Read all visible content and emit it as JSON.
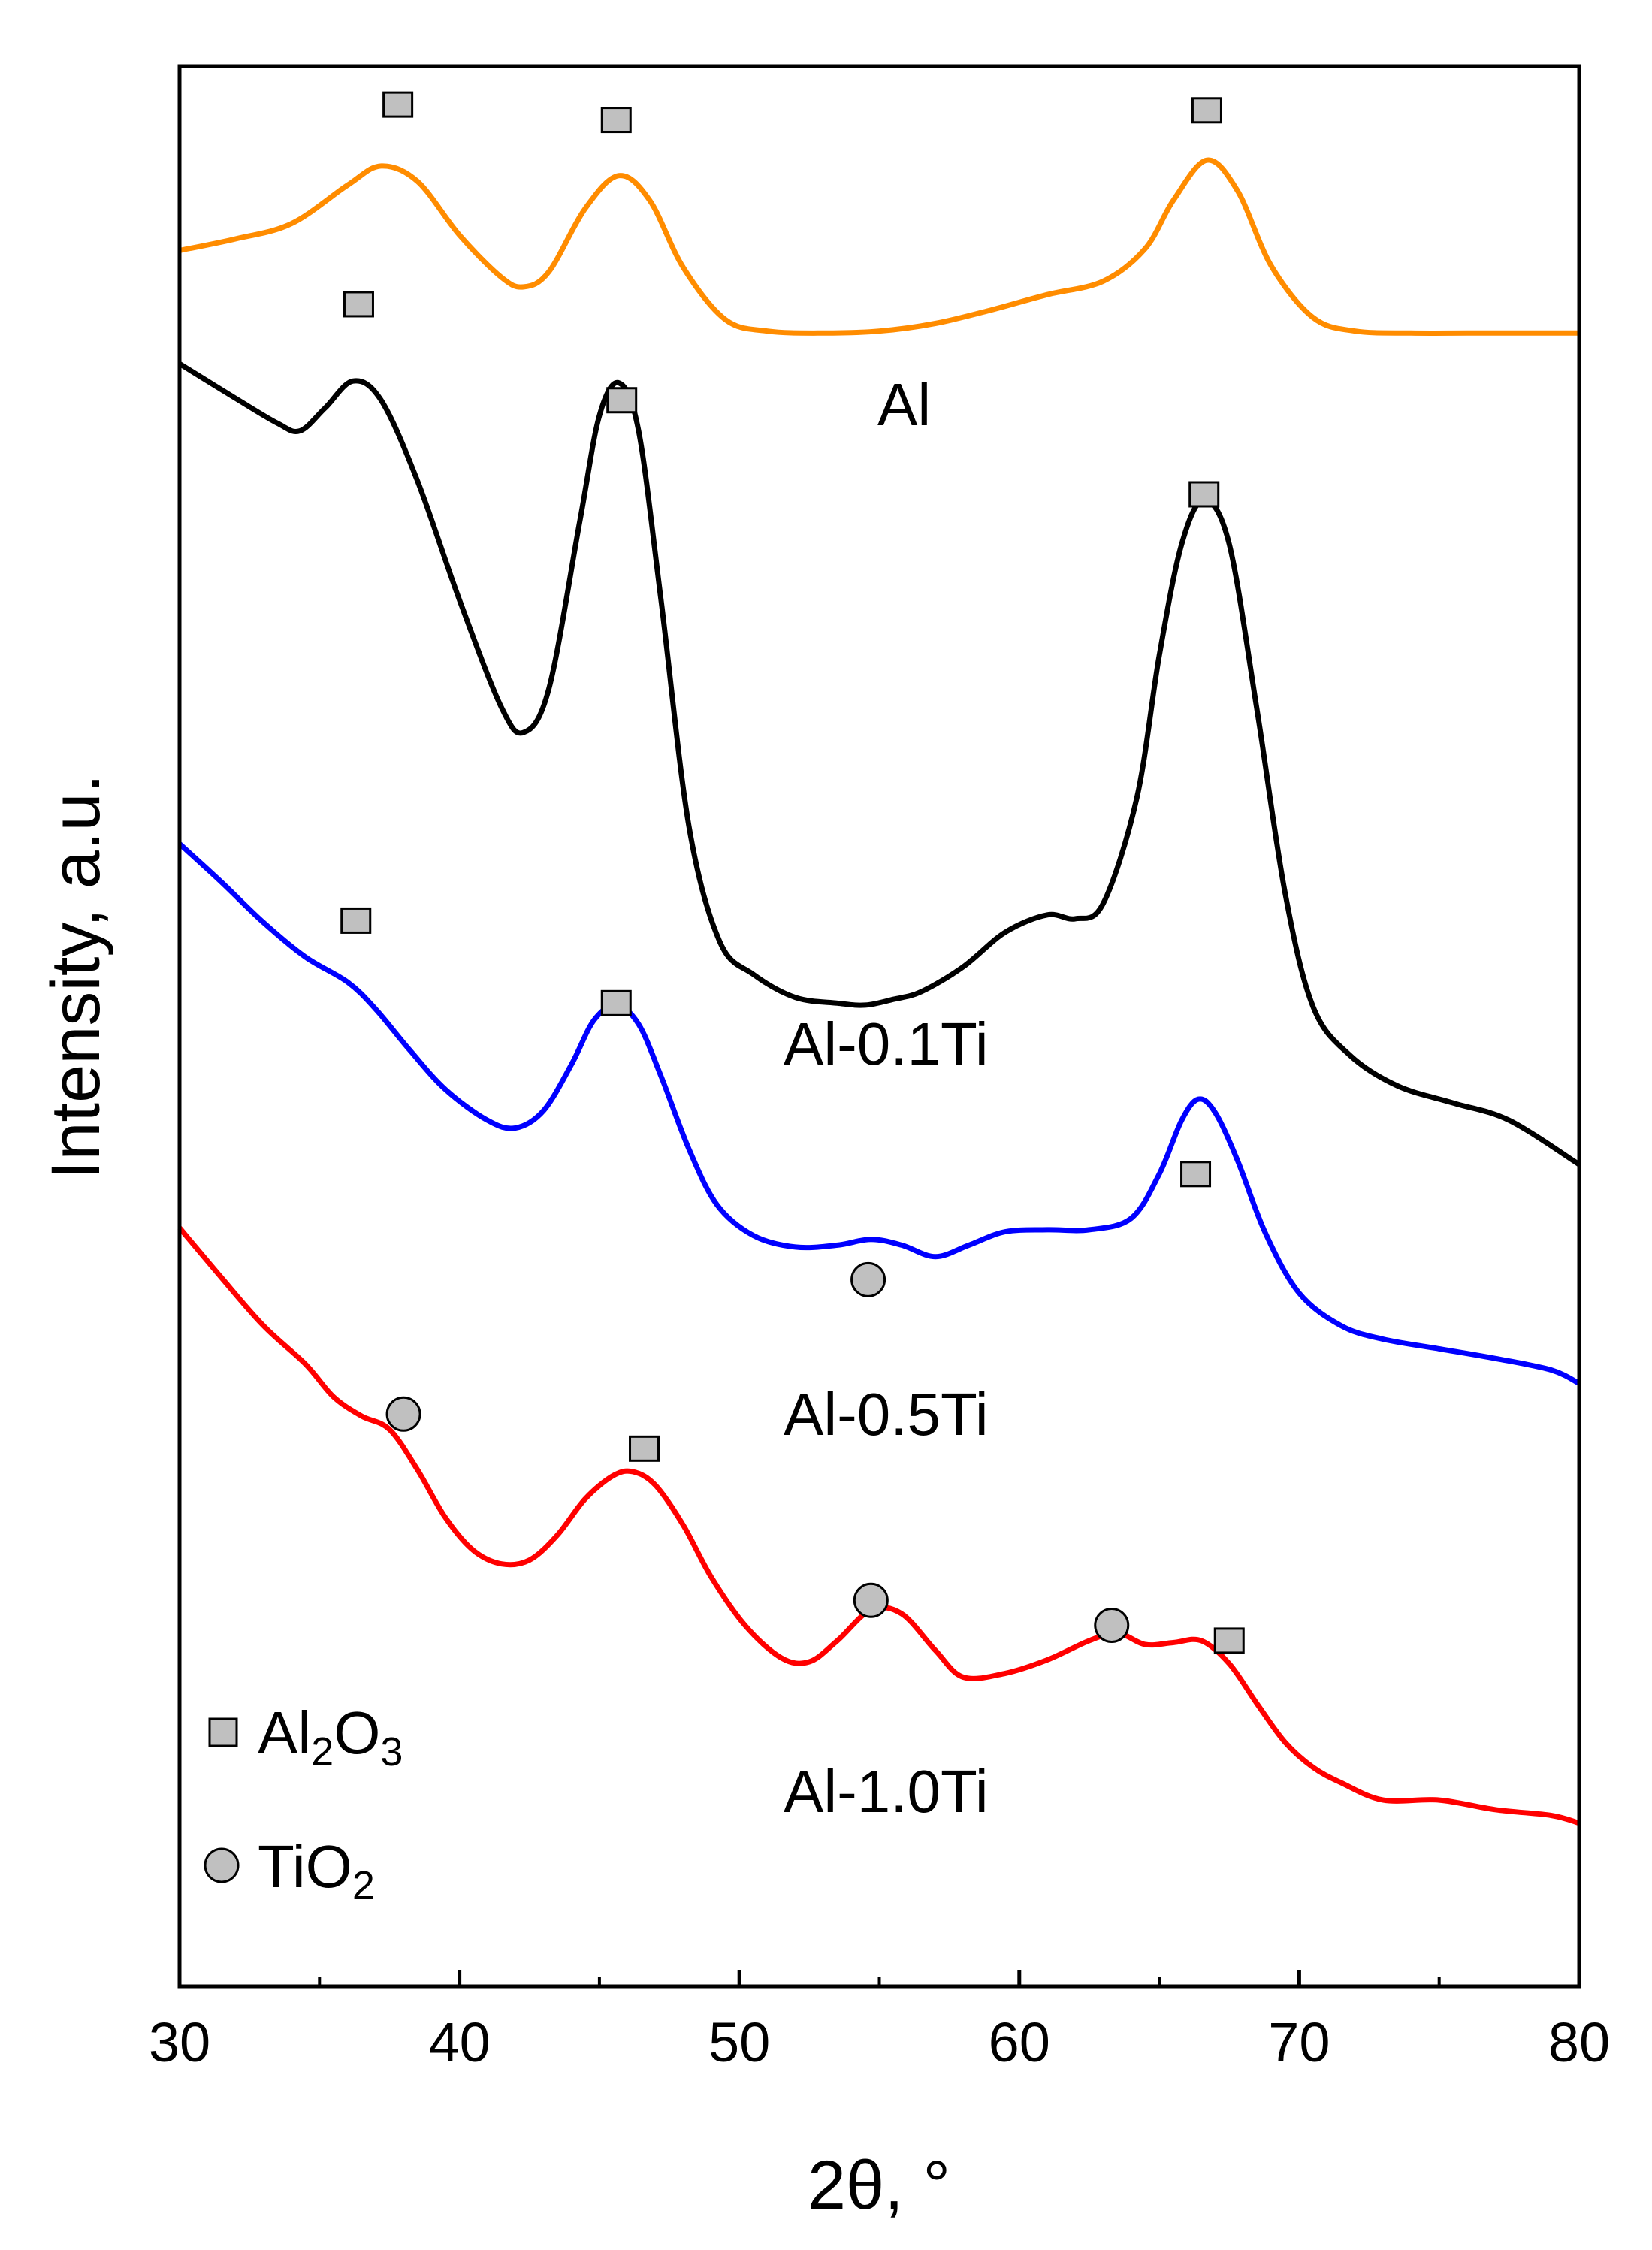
{
  "chart_data": {
    "type": "line",
    "title": "",
    "xlabel": "2θ, °",
    "ylabel": "Intensity, a.u.",
    "xlim": [
      30,
      80
    ],
    "ylim": [
      0,
      1000
    ],
    "xticks": [
      30,
      40,
      50,
      60,
      70,
      80
    ],
    "x_minor_ticks": [
      35,
      45,
      55,
      65,
      75
    ],
    "grid": false,
    "series": [
      {
        "name": "Al",
        "color": "#ff8c00",
        "x": [
          30,
          32,
          34,
          36,
          37.2,
          38.5,
          40,
          41.5,
          42.3,
          43.2,
          44.5,
          45.7,
          46.8,
          48,
          49.5,
          51,
          53,
          55,
          57,
          59,
          61,
          63,
          64.5,
          65.5,
          66.7,
          67.8,
          69,
          70.5,
          72,
          74,
          76,
          78,
          80
        ],
        "values": [
          904,
          910,
          918,
          938,
          948,
          940,
          912,
          890,
          885,
          893,
          926,
          943,
          930,
          895,
          868,
          862,
          861,
          862,
          866,
          873,
          881,
          888,
          905,
          930,
          951,
          935,
          896,
          869,
          862,
          861,
          861,
          861,
          861
        ]
      },
      {
        "name": "Al-0.1Ti",
        "color": "#000000",
        "x": [
          30,
          32,
          33.5,
          34.3,
          35.2,
          36.2,
          37.2,
          38.5,
          40,
          41.5,
          42.3,
          43.2,
          44.3,
          45,
          45.7,
          46.4,
          47.2,
          48.2,
          49.3,
          50.5,
          52,
          53.5,
          54.5,
          55.5,
          56.5,
          58,
          59.5,
          61,
          62,
          63,
          64.2,
          65,
          65.8,
          66.6,
          67.5,
          68.5,
          69.5,
          70.5,
          71.8,
          73.5,
          75.5,
          77.5,
          80
        ],
        "values": [
          845,
          827,
          814,
          810,
          822,
          836,
          826,
          784,
          722,
          666,
          653,
          676,
          763,
          818,
          835,
          810,
          722,
          604,
          544,
          527,
          515,
          512,
          511,
          514,
          518,
          531,
          549,
          558,
          556,
          564,
          619,
          693,
          751,
          774,
          751,
          664,
          569,
          510,
          485,
          469,
          460,
          451,
          428
        ]
      },
      {
        "name": "Al-0.5Ti",
        "color": "#0000ff",
        "x": [
          30,
          31.5,
          33,
          34.5,
          36,
          37,
          38.2,
          39.5,
          41,
          42,
          43,
          44,
          44.8,
          45.6,
          46.4,
          47.2,
          48.2,
          49.2,
          50.5,
          52,
          53.5,
          54.7,
          55.8,
          57,
          58.2,
          59.5,
          61,
          62.5,
          64,
          65,
          65.8,
          66.4,
          67,
          67.8,
          68.8,
          70,
          71.5,
          73,
          75,
          77,
          79,
          80
        ],
        "values": [
          595,
          575,
          554,
          536,
          523,
          509,
          488,
          467,
          451,
          447,
          456,
          480,
          503,
          511,
          501,
          474,
          436,
          407,
          391,
          385,
          386,
          389,
          386,
          380,
          386,
          393,
          394,
          394,
          400,
          423,
          451,
          462,
          455,
          430,
          392,
          361,
          344,
          337,
          332,
          327,
          321,
          314
        ]
      },
      {
        "name": "Al-1.0Ti",
        "color": "#ff0000",
        "x": [
          30,
          31.5,
          33,
          34.5,
          35.5,
          36.5,
          37.5,
          38.5,
          39.5,
          40.5,
          41.5,
          42.5,
          43.5,
          44.5,
          45.5,
          46.2,
          47,
          48,
          49,
          50.2,
          51.5,
          52.5,
          53.5,
          54.7,
          55.8,
          57,
          58,
          59.5,
          61,
          62.5,
          63.5,
          64.5,
          65.5,
          66.5,
          67.5,
          68.5,
          69.5,
          70.5,
          71.5,
          73,
          75,
          77,
          79,
          80
        ],
        "values": [
          395,
          369,
          344,
          324,
          307,
          297,
          290,
          269,
          244,
          227,
          220,
          222,
          235,
          254,
          266,
          268,
          261,
          240,
          213,
          188,
          171,
          169,
          180,
          196,
          194,
          175,
          161,
          163,
          170,
          180,
          184,
          178,
          179,
          180,
          168,
          147,
          127,
          114,
          106,
          97,
          97,
          92,
          89,
          85
        ]
      }
    ],
    "series_labels": [
      "Al",
      "Al-0.1Ti",
      "Al-0.5Ti",
      "Al-1.0Ti"
    ],
    "markers": [
      {
        "series": "Al",
        "phase": "Al2O3",
        "x": 37.8,
        "y": 980
      },
      {
        "series": "Al",
        "phase": "Al2O3",
        "x": 45.6,
        "y": 972
      },
      {
        "series": "Al",
        "phase": "Al2O3",
        "x": 66.7,
        "y": 977
      },
      {
        "series": "Al-0.1Ti",
        "phase": "Al2O3",
        "x": 36.4,
        "y": 876
      },
      {
        "series": "Al-0.1Ti",
        "phase": "Al2O3",
        "x": 45.8,
        "y": 826
      },
      {
        "series": "Al-0.1Ti",
        "phase": "Al2O3",
        "x": 66.6,
        "y": 777
      },
      {
        "series": "Al-0.5Ti",
        "phase": "Al2O3",
        "x": 36.3,
        "y": 555
      },
      {
        "series": "Al-0.5Ti",
        "phase": "Al2O3",
        "x": 45.6,
        "y": 512
      },
      {
        "series": "Al-0.5Ti",
        "phase": "Al2O3",
        "x": 66.3,
        "y": 423
      },
      {
        "series": "Al-0.5Ti",
        "phase": "TiO2",
        "x": 54.6,
        "y": 368
      },
      {
        "series": "Al-1.0Ti",
        "phase": "TiO2",
        "x": 38.0,
        "y": 298
      },
      {
        "series": "Al-1.0Ti",
        "phase": "Al2O3",
        "x": 46.6,
        "y": 280
      },
      {
        "series": "Al-1.0Ti",
        "phase": "TiO2",
        "x": 54.7,
        "y": 201
      },
      {
        "series": "Al-1.0Ti",
        "phase": "TiO2",
        "x": 63.3,
        "y": 188
      },
      {
        "series": "Al-1.0Ti",
        "phase": "Al2O3",
        "x": 67.5,
        "y": 180
      }
    ],
    "legend": {
      "placement": "bottom-left",
      "entries": [
        {
          "marker": "square",
          "base": "Al",
          "sub1": "2",
          "mid": "O",
          "sub2": "3"
        },
        {
          "marker": "circle",
          "base": "TiO",
          "sub1": "2"
        }
      ]
    },
    "marker_fill": "#c0c0c0",
    "marker_stroke": "#000000"
  }
}
